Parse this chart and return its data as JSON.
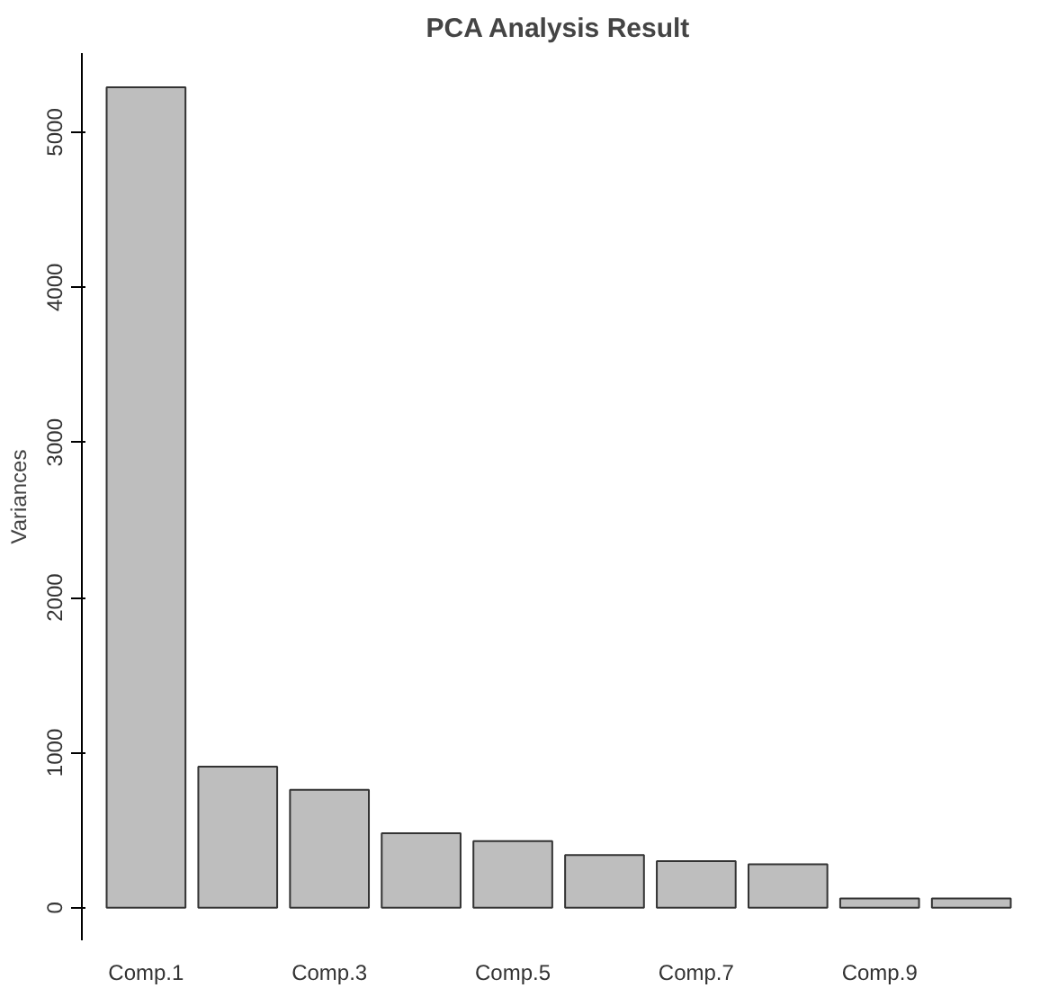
{
  "chart_data": {
    "type": "bar",
    "title": "PCA Analysis Result",
    "ylabel": "Variances",
    "categories": [
      "Comp.1",
      null,
      "Comp.3",
      null,
      "Comp.5",
      null,
      "Comp.7",
      null,
      "Comp.9",
      null
    ],
    "values": [
      5290,
      910,
      760,
      480,
      430,
      340,
      300,
      280,
      60,
      60
    ],
    "color": "#bebebe",
    "ylim": [
      -210,
      5510
    ],
    "yticks": [
      0,
      1000,
      2000,
      3000,
      4000,
      5000
    ],
    "grid": false,
    "legend": false
  }
}
